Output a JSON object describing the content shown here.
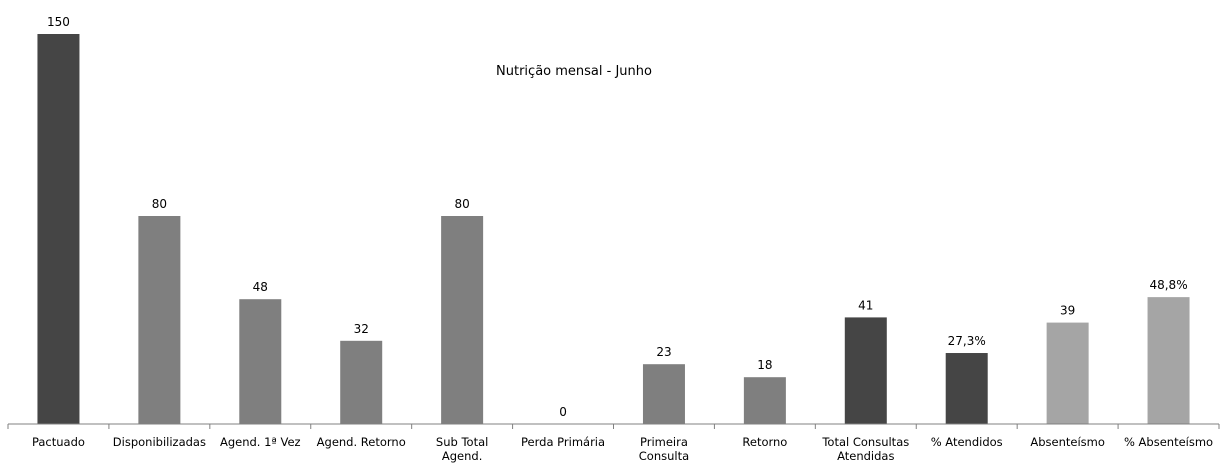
{
  "chart_data": {
    "type": "bar",
    "title": "Nutrição mensal  - Junho",
    "xlabel": "",
    "ylabel": "",
    "ylim": [
      0,
      150
    ],
    "grid": false,
    "legend": "none",
    "categories": [
      [
        "Pactuado"
      ],
      [
        "Disponibilizadas"
      ],
      [
        "Agend. 1ª Vez"
      ],
      [
        "Agend. Retorno"
      ],
      [
        "Sub Total",
        "Agend."
      ],
      [
        "Perda Primária"
      ],
      [
        "Primeira",
        "Consulta"
      ],
      [
        "Retorno"
      ],
      [
        "Total Consultas",
        "Atendidas"
      ],
      [
        "% Atendidos"
      ],
      [
        "Absenteísmo"
      ],
      [
        "% Absenteísmo"
      ]
    ],
    "values": [
      150,
      80,
      48,
      32,
      80,
      0,
      23,
      18,
      41,
      27.3,
      39,
      48.8
    ],
    "data_labels": [
      "150",
      "80",
      "48",
      "32",
      "80",
      "0",
      "23",
      "18",
      "41",
      "27,3%",
      "39",
      "48,8%"
    ],
    "colors": [
      "#454545",
      "#7f7f7f",
      "#7f7f7f",
      "#7f7f7f",
      "#7f7f7f",
      "#7f7f7f",
      "#7f7f7f",
      "#7f7f7f",
      "#454545",
      "#454545",
      "#a5a5a5",
      "#a5a5a5"
    ]
  }
}
